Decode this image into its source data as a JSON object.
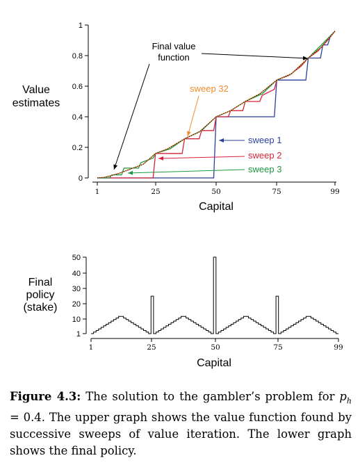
{
  "chart_data": [
    {
      "type": "line",
      "title": "",
      "xlabel": "Capital",
      "ylabel": "Value estimates",
      "xlim": [
        1,
        99
      ],
      "ylim": [
        0,
        1
      ],
      "xticks": [
        "1",
        "25",
        "50",
        "75",
        "99"
      ],
      "yticks": [
        "0",
        "0.2",
        "0.4",
        "0.6",
        "0.8",
        "1"
      ],
      "series": [
        {
          "name": "sweep 1",
          "color": "#2b3f9e",
          "points": [
            [
              1,
              0
            ],
            [
              49,
              0
            ],
            [
              50,
              0.4
            ],
            [
              74,
              0.4
            ],
            [
              75,
              0.64
            ],
            [
              87,
              0.64
            ],
            [
              88,
              0.784
            ],
            [
              93,
              0.784
            ],
            [
              94,
              0.87
            ],
            [
              96,
              0.87
            ],
            [
              97,
              0.92
            ],
            [
              98,
              0.94
            ],
            [
              99,
              0.96
            ]
          ]
        },
        {
          "name": "sweep 2",
          "color": "#d6213a",
          "points": [
            [
              1,
              0
            ],
            [
              24,
              0
            ],
            [
              25,
              0.16
            ],
            [
              36,
              0.16
            ],
            [
              37,
              0.256
            ],
            [
              43,
              0.256
            ],
            [
              44,
              0.31
            ],
            [
              49,
              0.31
            ],
            [
              50,
              0.4
            ],
            [
              55,
              0.4
            ],
            [
              56,
              0.44
            ],
            [
              61,
              0.44
            ],
            [
              62,
              0.5
            ],
            [
              68,
              0.5
            ],
            [
              69,
              0.54
            ],
            [
              74,
              0.58
            ],
            [
              75,
              0.64
            ],
            [
              80,
              0.67
            ],
            [
              85,
              0.73
            ],
            [
              88,
              0.784
            ],
            [
              92,
              0.83
            ],
            [
              96,
              0.9
            ],
            [
              99,
              0.96
            ]
          ]
        },
        {
          "name": "sweep 3",
          "color": "#1f9640",
          "points": [
            [
              1,
              0
            ],
            [
              6,
              0
            ],
            [
              7,
              0.02
            ],
            [
              11,
              0.02
            ],
            [
              12,
              0.064
            ],
            [
              18,
              0.064
            ],
            [
              19,
              0.1
            ],
            [
              24,
              0.13
            ],
            [
              25,
              0.16
            ],
            [
              31,
              0.19
            ],
            [
              37,
              0.256
            ],
            [
              44,
              0.31
            ],
            [
              50,
              0.4
            ],
            [
              56,
              0.44
            ],
            [
              62,
              0.5
            ],
            [
              69,
              0.55
            ],
            [
              75,
              0.64
            ],
            [
              81,
              0.68
            ],
            [
              88,
              0.784
            ],
            [
              94,
              0.88
            ],
            [
              99,
              0.96
            ]
          ]
        },
        {
          "name": "sweep 32",
          "color": "#f08c2e",
          "points": [
            [
              1,
              0
            ],
            [
              4,
              0.004
            ],
            [
              6,
              0.012
            ],
            [
              10,
              0.03
            ],
            [
              15,
              0.06
            ],
            [
              20,
              0.09
            ],
            [
              25,
              0.16
            ],
            [
              30,
              0.19
            ],
            [
              37,
              0.256
            ],
            [
              43,
              0.3
            ],
            [
              50,
              0.4
            ],
            [
              56,
              0.44
            ],
            [
              62,
              0.5
            ],
            [
              68,
              0.55
            ],
            [
              75,
              0.64
            ],
            [
              81,
              0.68
            ],
            [
              88,
              0.784
            ],
            [
              93,
              0.85
            ],
            [
              99,
              0.96
            ]
          ]
        },
        {
          "name": "Final value function",
          "color": "#000000",
          "points": [
            [
              1,
              0
            ],
            [
              4,
              0.004
            ],
            [
              6,
              0.012
            ],
            [
              10,
              0.03
            ],
            [
              15,
              0.06
            ],
            [
              20,
              0.09
            ],
            [
              25,
              0.16
            ],
            [
              30,
              0.19
            ],
            [
              37,
              0.256
            ],
            [
              43,
              0.3
            ],
            [
              50,
              0.4
            ],
            [
              56,
              0.44
            ],
            [
              62,
              0.5
            ],
            [
              68,
              0.55
            ],
            [
              75,
              0.64
            ],
            [
              81,
              0.68
            ],
            [
              88,
              0.784
            ],
            [
              93,
              0.85
            ],
            [
              99,
              0.96
            ]
          ]
        }
      ],
      "annotations": [
        "Final value function",
        "sweep 32",
        "sweep 1",
        "sweep 2",
        "sweep 3"
      ]
    },
    {
      "type": "step",
      "title": "",
      "xlabel": "Capital",
      "ylabel": "Final policy (stake)",
      "xlim": [
        1,
        99
      ],
      "ylim": [
        1,
        50
      ],
      "xticks": [
        "1",
        "25",
        "50",
        "75",
        "99"
      ],
      "yticks": [
        "1",
        "10",
        "20",
        "30",
        "40",
        "50"
      ],
      "x": [
        1,
        2,
        3,
        4,
        5,
        6,
        7,
        8,
        9,
        10,
        11,
        12,
        13,
        14,
        15,
        16,
        17,
        18,
        19,
        20,
        21,
        22,
        23,
        24,
        25,
        26,
        27,
        28,
        29,
        30,
        31,
        32,
        33,
        34,
        35,
        36,
        37,
        38,
        39,
        40,
        41,
        42,
        43,
        44,
        45,
        46,
        47,
        48,
        49,
        50,
        51,
        52,
        53,
        54,
        55,
        56,
        57,
        58,
        59,
        60,
        61,
        62,
        63,
        64,
        65,
        66,
        67,
        68,
        69,
        70,
        71,
        72,
        73,
        74,
        75,
        76,
        77,
        78,
        79,
        80,
        81,
        82,
        83,
        84,
        85,
        86,
        87,
        88,
        89,
        90,
        91,
        92,
        93,
        94,
        95,
        96,
        97,
        98,
        99
      ],
      "values": [
        1,
        2,
        3,
        4,
        5,
        6,
        7,
        8,
        9,
        10,
        11,
        12,
        12,
        11,
        10,
        9,
        8,
        7,
        6,
        5,
        4,
        3,
        2,
        1,
        25,
        1,
        2,
        3,
        4,
        5,
        6,
        7,
        8,
        9,
        10,
        11,
        12,
        12,
        11,
        10,
        9,
        8,
        7,
        6,
        5,
        4,
        3,
        2,
        1,
        50,
        1,
        2,
        3,
        4,
        5,
        6,
        7,
        8,
        9,
        10,
        11,
        12,
        12,
        11,
        10,
        9,
        8,
        7,
        6,
        5,
        4,
        3,
        2,
        1,
        25,
        1,
        2,
        3,
        4,
        5,
        6,
        7,
        8,
        9,
        10,
        11,
        12,
        12,
        11,
        10,
        9,
        8,
        7,
        6,
        5,
        4,
        3,
        2,
        1
      ]
    }
  ],
  "labels": {
    "top_ylabel_line1": "Value",
    "top_ylabel_line2": "estimates",
    "bottom_ylabel_line1": "Final",
    "bottom_ylabel_line2": "policy",
    "bottom_ylabel_line3": "(stake)",
    "ann_final_line1": "Final value",
    "ann_final_line2": "function"
  },
  "caption": {
    "prefix": "Figure 4.3:",
    "text": " The solution to the gambler’s problem for p_h = 0.4. The upper graph shows the value function found by successive sweeps of value iteration. The lower graph shows the final policy."
  }
}
